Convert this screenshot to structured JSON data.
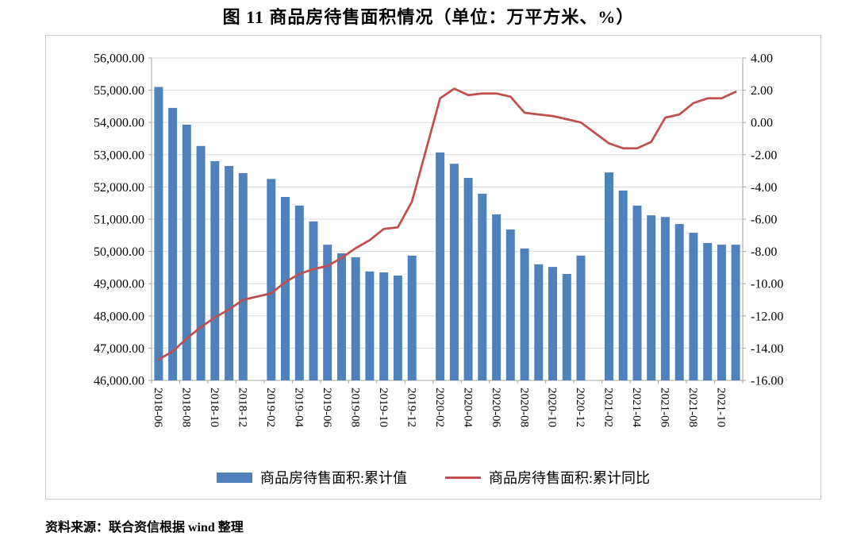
{
  "title": "图 11  商品房待售面积情况（单位：万平方米、%）",
  "source_note": "资料来源：联合资信根据 wind 整理",
  "colors": {
    "bar": "#4F81BD",
    "line": "#C0504D",
    "grid": "#D9D9D9",
    "axis": "#A6A6A6",
    "panel_border": "#C9C9C9",
    "text": "#000000"
  },
  "legend": [
    {
      "label": "商品房待售面积:累计值"
    },
    {
      "label": "商品房待售面积:累计同比"
    }
  ],
  "chart_data": {
    "type": "bar+line",
    "title": "图 11  商品房待售面积情况（单位：万平方米、%）",
    "bar_series_name": "商品房待售面积:累计值",
    "line_series_name": "商品房待售面积:累计同比",
    "grid": true,
    "legend_position": "bottom",
    "months": [
      "2018-06",
      "2018-07",
      "2018-08",
      "2018-09",
      "2018-10",
      "2018-11",
      "2018-12",
      "2019-02",
      "2019-03",
      "2019-04",
      "2019-05",
      "2019-06",
      "2019-07",
      "2019-08",
      "2019-09",
      "2019-10",
      "2019-11",
      "2019-12",
      "2020-02",
      "2020-03",
      "2020-04",
      "2020-05",
      "2020-06",
      "2020-07",
      "2020-08",
      "2020-09",
      "2020-10",
      "2020-11",
      "2020-12",
      "2021-02",
      "2021-03",
      "2021-04",
      "2021-05",
      "2021-06",
      "2021-07",
      "2021-08",
      "2021-09",
      "2021-10",
      "2021-11"
    ],
    "bar_values": [
      55100,
      54450,
      53930,
      53270,
      52800,
      52650,
      52430,
      52250,
      51690,
      51420,
      50930,
      50210,
      49940,
      49820,
      49380,
      49350,
      49250,
      49870,
      53070,
      52720,
      52280,
      51790,
      51150,
      50680,
      50090,
      49600,
      49520,
      49300,
      49870,
      52450,
      51890,
      51420,
      51120,
      51070,
      50850,
      50580,
      50260,
      50210,
      50210
    ],
    "line_values": [
      -14.7,
      -14.2,
      -13.4,
      -12.7,
      -12.1,
      -11.6,
      -11.0,
      -10.6,
      -9.9,
      -9.4,
      -9.1,
      -8.9,
      -8.4,
      -7.8,
      -7.3,
      -6.6,
      -6.5,
      -4.9,
      1.5,
      2.1,
      1.7,
      1.8,
      1.8,
      1.6,
      0.6,
      0.5,
      0.4,
      0.2,
      0.0,
      -1.3,
      -1.6,
      -1.6,
      -1.2,
      0.3,
      0.5,
      1.2,
      1.5,
      1.5,
      1.9
    ],
    "x_tick_labels": [
      "2018-06",
      "2018-08",
      "2018-10",
      "2018-12",
      "2019-02",
      "2019-04",
      "2019-06",
      "2019-08",
      "2019-10",
      "2019-12",
      "2020-02",
      "2020-04",
      "2020-06",
      "2020-08",
      "2020-10",
      "2020-12",
      "2021-02",
      "2021-04",
      "2021-06",
      "2021-08",
      "2021-10"
    ],
    "y_left": {
      "min": 46000,
      "max": 56000,
      "step": 1000,
      "tick_labels": [
        "56,000.00",
        "55,000.00",
        "54,000.00",
        "53,000.00",
        "52,000.00",
        "51,000.00",
        "50,000.00",
        "49,000.00",
        "48,000.00",
        "47,000.00",
        "46,000.00"
      ]
    },
    "y_right": {
      "min": -16,
      "max": 4,
      "step": 2,
      "tick_labels": [
        "4.00",
        "2.00",
        "0.00",
        "-2.00",
        "-4.00",
        "-6.00",
        "-8.00",
        "-10.00",
        "-12.00",
        "-14.00",
        "-16.00"
      ]
    }
  }
}
